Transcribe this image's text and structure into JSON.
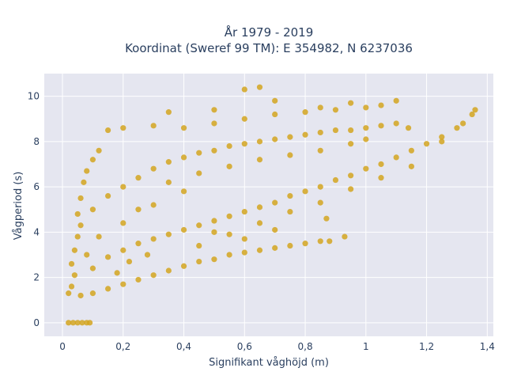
{
  "chart_data": {
    "type": "scatter",
    "title_lines": [
      "År 1979 - 2019",
      "Koordinat (Sweref 99 TM): E 354982, N 6237036"
    ],
    "xlabel": "Signifikant våghöjd (m)",
    "ylabel": "Vågperiod (s)",
    "xlim": [
      -0.06,
      1.42
    ],
    "ylim": [
      -0.6,
      11
    ],
    "x_ticks": [
      0,
      0.2,
      0.4,
      0.6,
      0.8,
      1,
      1.2,
      1.4
    ],
    "x_tick_labels": [
      "0",
      "0,2",
      "0,4",
      "0,6",
      "0,8",
      "1",
      "1,2",
      "1,4"
    ],
    "y_ticks": [
      0,
      2,
      4,
      6,
      8,
      10
    ],
    "y_tick_labels": [
      "0",
      "2",
      "4",
      "6",
      "8",
      "10"
    ],
    "grid": true,
    "marker_color": "#D4A520",
    "background": "#E5E6F0",
    "points": [
      [
        0.02,
        0
      ],
      [
        0.035,
        0
      ],
      [
        0.05,
        0
      ],
      [
        0.065,
        0
      ],
      [
        0.08,
        0
      ],
      [
        0.09,
        0
      ],
      [
        0.02,
        1.3
      ],
      [
        0.03,
        1.6
      ],
      [
        0.04,
        2.1
      ],
      [
        0.03,
        2.6
      ],
      [
        0.04,
        3.2
      ],
      [
        0.05,
        3.8
      ],
      [
        0.06,
        4.3
      ],
      [
        0.05,
        4.8
      ],
      [
        0.06,
        5.5
      ],
      [
        0.07,
        6.2
      ],
      [
        0.08,
        6.7
      ],
      [
        0.1,
        7.2
      ],
      [
        0.12,
        7.6
      ],
      [
        0.06,
        1.2
      ],
      [
        0.1,
        1.3
      ],
      [
        0.15,
        1.5
      ],
      [
        0.2,
        1.7
      ],
      [
        0.25,
        1.9
      ],
      [
        0.3,
        2.1
      ],
      [
        0.35,
        2.3
      ],
      [
        0.4,
        2.5
      ],
      [
        0.45,
        2.7
      ],
      [
        0.5,
        2.8
      ],
      [
        0.55,
        3.0
      ],
      [
        0.6,
        3.1
      ],
      [
        0.65,
        3.2
      ],
      [
        0.7,
        3.3
      ],
      [
        0.75,
        3.4
      ],
      [
        0.8,
        3.5
      ],
      [
        0.85,
        3.6
      ],
      [
        0.88,
        3.6
      ],
      [
        0.1,
        2.4
      ],
      [
        0.15,
        2.9
      ],
      [
        0.2,
        3.2
      ],
      [
        0.25,
        3.5
      ],
      [
        0.3,
        3.7
      ],
      [
        0.35,
        3.9
      ],
      [
        0.4,
        4.1
      ],
      [
        0.45,
        4.3
      ],
      [
        0.5,
        4.5
      ],
      [
        0.55,
        4.7
      ],
      [
        0.6,
        4.9
      ],
      [
        0.65,
        5.1
      ],
      [
        0.7,
        5.3
      ],
      [
        0.75,
        5.6
      ],
      [
        0.8,
        5.8
      ],
      [
        0.85,
        6.0
      ],
      [
        0.9,
        6.3
      ],
      [
        0.95,
        6.5
      ],
      [
        1.0,
        6.8
      ],
      [
        1.05,
        7.0
      ],
      [
        1.1,
        7.3
      ],
      [
        1.15,
        7.6
      ],
      [
        1.2,
        7.9
      ],
      [
        1.25,
        8.2
      ],
      [
        1.3,
        8.6
      ],
      [
        1.35,
        9.2
      ],
      [
        0.1,
        5.0
      ],
      [
        0.15,
        5.6
      ],
      [
        0.2,
        6.0
      ],
      [
        0.25,
        6.4
      ],
      [
        0.3,
        6.8
      ],
      [
        0.35,
        7.1
      ],
      [
        0.4,
        7.3
      ],
      [
        0.45,
        7.5
      ],
      [
        0.5,
        7.6
      ],
      [
        0.55,
        7.8
      ],
      [
        0.6,
        7.9
      ],
      [
        0.65,
        8.0
      ],
      [
        0.7,
        8.1
      ],
      [
        0.75,
        8.2
      ],
      [
        0.8,
        8.3
      ],
      [
        0.85,
        8.4
      ],
      [
        0.9,
        8.5
      ],
      [
        0.95,
        8.5
      ],
      [
        1.0,
        8.6
      ],
      [
        1.05,
        8.7
      ],
      [
        1.1,
        8.8
      ],
      [
        0.15,
        8.5
      ],
      [
        0.2,
        8.6
      ],
      [
        0.3,
        8.7
      ],
      [
        0.4,
        8.6
      ],
      [
        0.5,
        8.8
      ],
      [
        0.6,
        9.0
      ],
      [
        0.7,
        9.2
      ],
      [
        0.8,
        9.3
      ],
      [
        0.9,
        9.4
      ],
      [
        1.0,
        9.5
      ],
      [
        1.05,
        9.6
      ],
      [
        1.1,
        9.8
      ],
      [
        0.35,
        9.3
      ],
      [
        0.5,
        9.4
      ],
      [
        0.6,
        10.3
      ],
      [
        0.65,
        10.4
      ],
      [
        0.7,
        9.8
      ],
      [
        0.85,
        9.5
      ],
      [
        0.95,
        9.7
      ],
      [
        1.14,
        8.6
      ],
      [
        1.25,
        8.0
      ],
      [
        1.32,
        8.8
      ],
      [
        1.36,
        9.4
      ],
      [
        0.5,
        4.0
      ],
      [
        0.6,
        3.7
      ],
      [
        0.7,
        4.1
      ],
      [
        0.87,
        4.6
      ],
      [
        0.93,
        3.8
      ],
      [
        0.3,
        5.2
      ],
      [
        0.4,
        5.8
      ],
      [
        0.2,
        4.4
      ],
      [
        0.25,
        5.0
      ],
      [
        0.35,
        6.2
      ],
      [
        0.45,
        6.6
      ],
      [
        0.55,
        6.9
      ],
      [
        0.65,
        7.2
      ],
      [
        0.75,
        7.4
      ],
      [
        0.85,
        7.6
      ],
      [
        0.95,
        7.9
      ],
      [
        1.0,
        8.1
      ],
      [
        0.08,
        3.0
      ],
      [
        0.12,
        3.8
      ],
      [
        0.18,
        2.2
      ],
      [
        0.22,
        2.7
      ],
      [
        0.28,
        3.0
      ],
      [
        0.45,
        3.4
      ],
      [
        0.55,
        3.9
      ],
      [
        0.65,
        4.4
      ],
      [
        0.75,
        4.9
      ],
      [
        0.85,
        5.3
      ],
      [
        0.95,
        5.9
      ],
      [
        1.05,
        6.4
      ],
      [
        1.15,
        6.9
      ]
    ]
  }
}
